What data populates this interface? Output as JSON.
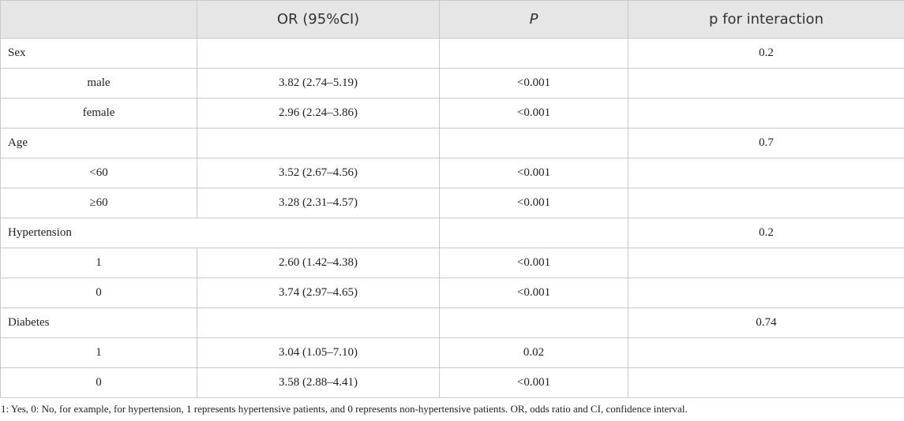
{
  "table": {
    "header": [
      "OR (95%CI)",
      "P",
      "p for interaction"
    ],
    "rows": [
      {
        "label": "Sex",
        "interaction": "0.2"
      },
      {
        "label": "male",
        "or": "3.82 (2.74–5.19)",
        "p": "<0.001"
      },
      {
        "label": "female",
        "or": "2.96 (2.24–3.86)",
        "p": "<0.001"
      },
      {
        "label": "Age",
        "interaction": "0.7"
      },
      {
        "label": "<60",
        "or": "3.52 (2.67–4.56)",
        "p": "<0.001"
      },
      {
        "label": "≥60",
        "or": "3.28 (2.31–4.57)",
        "p": "<0.001"
      },
      {
        "label": "Hypertension",
        "interaction": "0.2"
      },
      {
        "label": "1",
        "or": "2.60 (1.42–4.38)",
        "p": "<0.001"
      },
      {
        "label": "0",
        "or": "3.74 (2.97–4.65)",
        "p": "<0.001"
      },
      {
        "label": "Diabetes",
        "interaction": "0.74"
      },
      {
        "label": "1",
        "or": "3.04 (1.05–7.10)",
        "p": "0.02"
      },
      {
        "label": "0",
        "or": "3.58 (2.88–4.41)",
        "p": "<0.001"
      }
    ]
  },
  "footnote": "1: Yes, 0: No, for example, for hypertension, 1 represents hypertensive patients, and 0 represents non-hypertensive patients. OR, odds ratio and CI, confidence interval."
}
